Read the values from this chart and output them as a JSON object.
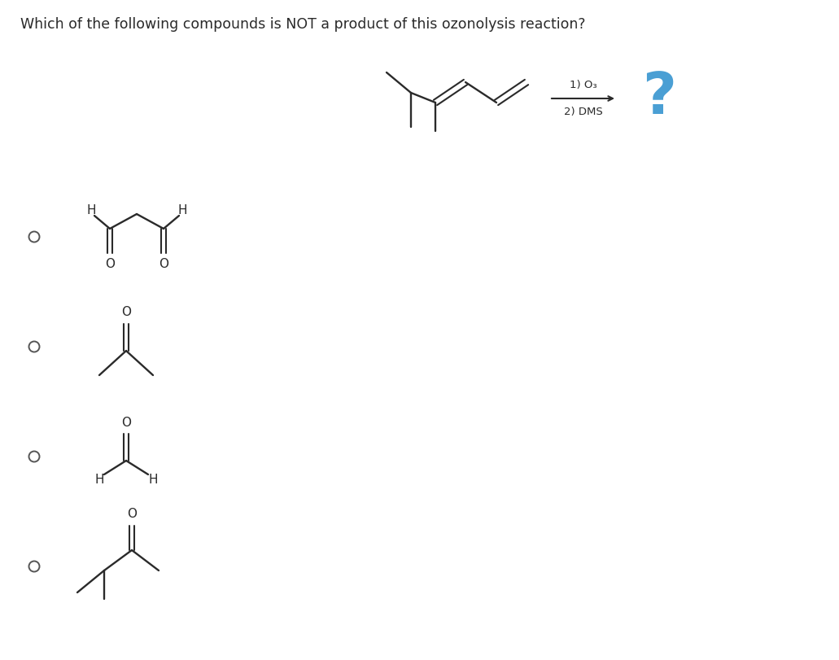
{
  "question": "Which of the following compounds is NOT a product of this ozonolysis reaction?",
  "bg_color": "#ffffff",
  "text_color": "#2a2a2a",
  "radio_color": "#555555",
  "arrow_color": "#2a2a2a",
  "question_fontsize": 12.5,
  "reagent_text_1": "1) O₃",
  "reagent_text_2": "2) DMS",
  "question_mark_color": "#4a9fd4",
  "question_mark_fontsize": 52,
  "bond_color": "#2a2a2a",
  "label_fontsize": 11
}
